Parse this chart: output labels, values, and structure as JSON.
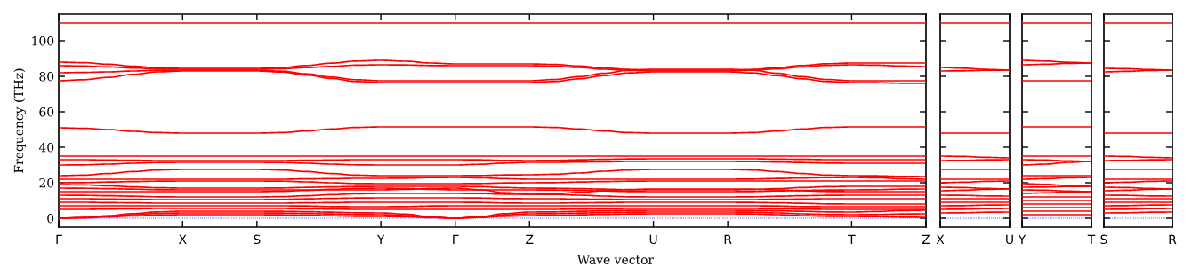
{
  "chart_data": [
    {
      "type": "line",
      "xlabel": "Wave vector",
      "ylabel": "Frequency (THz)",
      "ylim": [
        -5,
        115
      ],
      "yticks": [
        0,
        20,
        40,
        60,
        80,
        100
      ],
      "categories": [
        "Γ",
        null,
        null,
        null,
        null,
        "X",
        null,
        null,
        "S",
        null,
        null,
        null,
        null,
        "Y",
        null,
        null,
        "Γ",
        null,
        null,
        "Z",
        null,
        null,
        null,
        null,
        "U",
        null,
        null,
        "R",
        null,
        null,
        null,
        null,
        "T",
        null,
        null,
        "Z"
      ],
      "line_style": "solid",
      "grid": false,
      "ref_lines": [
        {
          "axis": "y",
          "value": 0,
          "color": "#0000ff",
          "line_style": "dotted"
        }
      ],
      "series": [
        {
          "color": "#ff0000",
          "values": [
            110,
            110,
            110,
            110,
            110,
            110,
            110,
            110,
            110,
            110,
            110,
            110,
            110,
            110,
            110,
            110,
            110,
            110,
            110,
            110,
            110,
            110,
            110,
            110,
            110,
            110,
            110,
            110,
            110,
            110,
            110,
            110,
            110,
            110,
            110,
            110
          ]
        },
        {
          "color": "#ff0000",
          "values": [
            88,
            87.7,
            86.8,
            85.7,
            84.8,
            84.5,
            84.5,
            84.5,
            84.5,
            84.9,
            86.1,
            87.4,
            88.6,
            89,
            88.5,
            87.5,
            87,
            87,
            87,
            87,
            86.7,
            85.8,
            84.7,
            83.9,
            83.5,
            83.5,
            83.5,
            83.5,
            83.9,
            84.9,
            86.1,
            87.1,
            87.5,
            87.5,
            87.5,
            87.5
          ]
        },
        {
          "color": "#ff0000",
          "values": [
            86,
            85.8,
            85.3,
            84.7,
            84.2,
            84,
            84,
            84,
            84,
            84.3,
            84.9,
            85.6,
            86.3,
            86.5,
            86.4,
            86.1,
            86,
            86,
            86,
            86,
            85.7,
            85,
            84,
            83.3,
            83,
            83,
            83,
            83,
            83.4,
            84.2,
            85.3,
            86.2,
            86.5,
            86.3,
            85.8,
            85.5
          ]
        },
        {
          "color": "#ff0000",
          "values": [
            82,
            82.2,
            82.5,
            83,
            83.4,
            83.5,
            83.5,
            83.5,
            83.5,
            82.9,
            81.4,
            79.6,
            78.1,
            77.5,
            77.5,
            77.5,
            77.5,
            77.5,
            77.5,
            77.5,
            78.2,
            79.8,
            81.7,
            83.4,
            84,
            84,
            84,
            84,
            83.4,
            81.7,
            79.8,
            78.2,
            77.5,
            77.5,
            77.5,
            77.5
          ]
        },
        {
          "color": "#ff0000",
          "values": [
            77.5,
            78.1,
            79.4,
            81.1,
            82.5,
            83,
            83,
            83,
            83,
            82.4,
            80.7,
            78.8,
            77.1,
            76.5,
            76.5,
            76.5,
            76.5,
            76.5,
            76.5,
            76.5,
            77.1,
            78.6,
            80.4,
            81.9,
            82.5,
            82.5,
            82.5,
            82.5,
            81.9,
            80.4,
            78.6,
            77.1,
            76.5,
            76.4,
            76.1,
            76
          ]
        },
        {
          "color": "#ff0000",
          "values": [
            51,
            50.7,
            50,
            49,
            48.3,
            48,
            48,
            48,
            48,
            48.3,
            49.2,
            50.3,
            51.2,
            51.5,
            51.5,
            51.5,
            51.5,
            51.5,
            51.5,
            51.5,
            51.2,
            50.3,
            49.2,
            48.3,
            48,
            48,
            48,
            48,
            48.3,
            49.2,
            50.3,
            51.2,
            51.5,
            51.5,
            51.5,
            51.5
          ]
        },
        {
          "color": "#ff0000",
          "values": [
            35,
            35,
            35,
            35,
            35,
            35,
            35,
            35,
            35,
            35,
            35,
            35,
            35,
            35,
            35,
            35,
            35,
            35,
            35,
            35,
            35,
            35,
            35,
            35,
            35,
            35,
            35,
            35,
            35,
            35,
            35,
            35,
            35,
            35,
            35,
            35
          ]
        },
        {
          "color": "#ff0000",
          "values": [
            33,
            33,
            32.8,
            32.7,
            32.5,
            32.5,
            32.5,
            32.5,
            32.5,
            32.5,
            32.7,
            32.8,
            33,
            33,
            33,
            33,
            33,
            32.9,
            32.6,
            32.5,
            32.6,
            32.9,
            33.2,
            33.4,
            33.5,
            33.5,
            33.5,
            33.5,
            33.5,
            33.3,
            33.2,
            33,
            33,
            33,
            33,
            33
          ]
        },
        {
          "color": "#ff0000",
          "values": [
            30,
            30.1,
            30.5,
            31,
            31.4,
            31.5,
            31.5,
            31.5,
            31.5,
            31.4,
            31,
            30.5,
            30.1,
            30,
            30,
            30,
            30,
            30.4,
            31.1,
            31.5,
            31.5,
            31.7,
            31.8,
            32,
            32,
            32,
            32,
            32,
            31.9,
            31.7,
            31.4,
            31.1,
            31,
            31,
            31,
            31
          ]
        },
        {
          "color": "#ff0000",
          "values": [
            24,
            24.3,
            25.2,
            26.3,
            27.2,
            27.5,
            27.5,
            27.5,
            27.5,
            27.2,
            26.3,
            25.2,
            24.3,
            24,
            24,
            24,
            24,
            24.1,
            24.4,
            24.5,
            24.8,
            25.5,
            26.5,
            27.2,
            27.5,
            27.5,
            27.5,
            27.5,
            27.2,
            26.3,
            25.2,
            24.3,
            24,
            23.9,
            23.6,
            23.5
          ]
        },
        {
          "color": "#ff0000",
          "values": [
            22,
            22,
            22,
            22,
            22,
            22,
            22,
            22,
            22,
            22,
            22.2,
            22.3,
            22.5,
            22.5,
            22.6,
            22.9,
            23,
            22.8,
            22.3,
            22,
            22,
            22,
            22,
            22,
            22,
            22,
            22,
            22,
            22.1,
            22.4,
            22.7,
            22.9,
            23,
            22.8,
            22.3,
            22
          ]
        },
        {
          "color": "#ff0000",
          "values": [
            20,
            20.1,
            20.4,
            20.7,
            20.9,
            21,
            21,
            21,
            21,
            20.9,
            20.5,
            20,
            19.6,
            19.5,
            19.5,
            19.5,
            19.5,
            19.6,
            19.9,
            20,
            20.1,
            20.4,
            20.7,
            20.9,
            21,
            21,
            21,
            21,
            21,
            21,
            21,
            21,
            21,
            21,
            21,
            21
          ]
        },
        {
          "color": "#ff0000",
          "values": [
            19,
            18.8,
            18.3,
            17.7,
            17.2,
            17,
            17,
            17,
            17,
            17.1,
            17.4,
            17.7,
            17.9,
            18,
            18,
            18,
            18,
            17.8,
            17.3,
            17,
            16.9,
            16.7,
            16.4,
            16.1,
            16,
            16,
            16,
            16,
            16.2,
            16.7,
            17.3,
            17.8,
            18,
            18,
            18,
            18
          ]
        },
        {
          "color": "#ff0000",
          "values": [
            17,
            16.9,
            16.7,
            16.4,
            16.1,
            16,
            16,
            16,
            16,
            16,
            16,
            16,
            16,
            16,
            16.3,
            16.8,
            17,
            16.1,
            14.4,
            13.5,
            13.8,
            14.6,
            15.5,
            16.2,
            16.5,
            16.5,
            16.5,
            16.5,
            16.4,
            16,
            15.5,
            15.1,
            15,
            15,
            15,
            15
          ]
        },
        {
          "color": "#ff0000",
          "values": [
            15,
            15,
            15,
            15,
            15,
            15,
            15,
            15,
            15,
            15.2,
            15.7,
            16.3,
            16.8,
            17,
            16.8,
            16.3,
            16,
            16,
            16,
            16,
            15.9,
            15.7,
            15.4,
            15.1,
            15,
            15,
            15,
            15,
            15.1,
            15.4,
            15.7,
            15.9,
            16,
            16.1,
            16.4,
            16.5
          ]
        },
        {
          "color": "#ff0000",
          "values": [
            13,
            12.9,
            12.7,
            12.4,
            12.1,
            12,
            12,
            12,
            12,
            12.2,
            12.7,
            13.3,
            13.8,
            14,
            14,
            14,
            14,
            13.9,
            13.6,
            13.5,
            13.4,
            13,
            12.5,
            12.1,
            12,
            12,
            12,
            12,
            12.1,
            12.4,
            12.7,
            12.9,
            13,
            13,
            13,
            13
          ]
        },
        {
          "color": "#ff0000",
          "values": [
            11,
            11,
            10.8,
            10.7,
            10.5,
            10.5,
            10.5,
            10.5,
            10.5,
            10.6,
            10.9,
            11.2,
            11.4,
            11.5,
            11.5,
            11.5,
            11.5,
            11.4,
            11.1,
            11,
            11,
            10.8,
            10.7,
            10.5,
            10.5,
            10.5,
            10.5,
            10.5,
            10.5,
            10.7,
            10.8,
            11,
            11,
            11,
            11,
            11
          ]
        },
        {
          "color": "#ff0000",
          "values": [
            9,
            9,
            8.8,
            8.7,
            8.5,
            8.5,
            8.5,
            8.5,
            8.5,
            8.5,
            8.7,
            8.8,
            9,
            9,
            9,
            9,
            9,
            8.9,
            8.6,
            8.5,
            8.5,
            8.7,
            8.8,
            9,
            9,
            9,
            9,
            9,
            8.9,
            8.7,
            8.4,
            8.1,
            8,
            8,
            8,
            8
          ]
        },
        {
          "color": "#ff0000",
          "values": [
            7,
            7,
            7,
            7,
            7,
            7,
            7,
            7,
            7,
            7,
            6.9,
            6.6,
            6.5,
            6.5,
            6.6,
            6.9,
            7,
            7,
            7,
            7,
            7,
            7,
            7,
            7,
            7,
            7,
            7,
            7,
            7,
            6.9,
            6.6,
            6.5,
            6.5,
            6.5,
            6.5,
            6.5
          ]
        },
        {
          "color": "#ff0000",
          "values": [
            5,
            5,
            5.2,
            5.3,
            5.5,
            5.5,
            5.5,
            5.5,
            5.5,
            5.5,
            5.3,
            5.2,
            5,
            5,
            5,
            5,
            5,
            5,
            5,
            5,
            5,
            5.2,
            5.3,
            5.5,
            5.5,
            5.5,
            5.5,
            5.5,
            5.5,
            5.3,
            5.2,
            5,
            5,
            5,
            5,
            5
          ]
        },
        {
          "color": "#ff0000",
          "values": [
            0,
            0.4,
            1.4,
            2.6,
            3.6,
            4,
            4,
            4,
            4,
            3.9,
            3.7,
            3.4,
            3.1,
            3,
            2.3,
            0.8,
            0,
            0.9,
            2.6,
            3.5,
            3.6,
            3.9,
            4.2,
            4.4,
            4.5,
            4.5,
            4.5,
            4.5,
            4.4,
            4.2,
            3.9,
            3.6,
            3.5,
            3.8,
            4.3,
            4.5
          ]
        },
        {
          "color": "#ff0000",
          "values": [
            0,
            0.3,
            1.1,
            2,
            2.7,
            3,
            3,
            3,
            3,
            2.9,
            2.7,
            2.4,
            2.1,
            2,
            1.5,
            0.5,
            0,
            0.6,
            1.9,
            2.5,
            2.6,
            2.9,
            3.2,
            3.4,
            3.5,
            3.5,
            3.5,
            3.5,
            3.4,
            3,
            2.5,
            2.1,
            2,
            2.1,
            2.4,
            2.5
          ]
        },
        {
          "color": "#ff0000",
          "values": [
            0,
            0.2,
            0.7,
            1.3,
            1.8,
            2,
            2,
            2,
            2,
            1.9,
            1.7,
            1.4,
            1.1,
            1,
            0.8,
            0.3,
            0,
            0.4,
            1.1,
            1.5,
            1.6,
            1.9,
            2.2,
            2.4,
            2.5,
            2.5,
            2.5,
            2.5,
            2.4,
            2,
            1.5,
            1.1,
            1,
            0.9,
            0.6,
            0.5
          ]
        }
      ]
    },
    {
      "type": "line",
      "ylim": [
        -5,
        115
      ],
      "yticks": [
        0,
        20,
        40,
        60,
        80,
        100
      ],
      "tick_labels": "x",
      "categories": [
        "X",
        null,
        null,
        "U"
      ],
      "line_style": "solid",
      "grid": false,
      "ref_lines": [
        {
          "axis": "y",
          "value": 0,
          "color": "#0000ff",
          "line_style": "dotted"
        }
      ],
      "series": [
        {
          "color": "#ff0000",
          "values": [
            110,
            110,
            110,
            110
          ]
        },
        {
          "color": "#ff0000",
          "values": [
            85,
            84.6,
            83.9,
            83.5
          ]
        },
        {
          "color": "#ff0000",
          "values": [
            83,
            83.1,
            83.4,
            83.5
          ]
        },
        {
          "color": "#ff0000",
          "values": [
            48,
            48,
            48,
            48
          ]
        },
        {
          "color": "#ff0000",
          "values": [
            35,
            34.8,
            34.3,
            34
          ]
        },
        {
          "color": "#ff0000",
          "values": [
            32.5,
            32.6,
            32.9,
            33
          ]
        },
        {
          "color": "#ff0000",
          "values": [
            27.5,
            27.5,
            27.5,
            27.5
          ]
        },
        {
          "color": "#ff0000",
          "values": [
            22,
            22,
            22,
            22
          ]
        },
        {
          "color": "#ff0000",
          "values": [
            20,
            20.3,
            20.8,
            21
          ]
        },
        {
          "color": "#ff0000",
          "values": [
            17.5,
            17.3,
            16.8,
            16.5
          ]
        },
        {
          "color": "#ff0000",
          "values": [
            15.5,
            15.8,
            16.3,
            16.5
          ]
        },
        {
          "color": "#ff0000",
          "values": [
            13,
            12.9,
            12.6,
            12.5
          ]
        },
        {
          "color": "#ff0000",
          "values": [
            11,
            11,
            11,
            11
          ]
        },
        {
          "color": "#ff0000",
          "values": [
            9,
            9,
            9,
            9
          ]
        },
        {
          "color": "#ff0000",
          "values": [
            7,
            7.1,
            7.4,
            7.5
          ]
        },
        {
          "color": "#ff0000",
          "values": [
            5,
            5.1,
            5.4,
            5.5
          ]
        },
        {
          "color": "#ff0000",
          "values": [
            3,
            3.1,
            3.4,
            3.5
          ]
        }
      ]
    },
    {
      "type": "line",
      "ylim": [
        -5,
        115
      ],
      "yticks": [
        0,
        20,
        40,
        60,
        80,
        100
      ],
      "tick_labels": "x",
      "categories": [
        "Y",
        null,
        null,
        "T"
      ],
      "line_style": "solid",
      "grid": false,
      "ref_lines": [
        {
          "axis": "y",
          "value": 0,
          "color": "#0000ff",
          "line_style": "dotted"
        }
      ],
      "series": [
        {
          "color": "#ff0000",
          "values": [
            110,
            110,
            110,
            110
          ]
        },
        {
          "color": "#ff0000",
          "values": [
            89,
            88.6,
            87.9,
            87.5
          ]
        },
        {
          "color": "#ff0000",
          "values": [
            86.5,
            86.8,
            87.3,
            87.5
          ]
        },
        {
          "color": "#ff0000",
          "values": [
            77.5,
            77.5,
            77.5,
            77.5
          ]
        },
        {
          "color": "#ff0000",
          "values": [
            51.5,
            51.5,
            51.5,
            51.5
          ]
        },
        {
          "color": "#ff0000",
          "values": [
            35,
            35,
            35,
            35
          ]
        },
        {
          "color": "#ff0000",
          "values": [
            33,
            32.8,
            32.3,
            32
          ]
        },
        {
          "color": "#ff0000",
          "values": [
            30,
            30.5,
            31.5,
            32
          ]
        },
        {
          "color": "#ff0000",
          "values": [
            24,
            24,
            24,
            24
          ]
        },
        {
          "color": "#ff0000",
          "values": [
            22,
            22.3,
            22.8,
            23
          ]
        },
        {
          "color": "#ff0000",
          "values": [
            19.5,
            19.1,
            18.4,
            18
          ]
        },
        {
          "color": "#ff0000",
          "values": [
            17.5,
            17.6,
            17.9,
            18
          ]
        },
        {
          "color": "#ff0000",
          "values": [
            16,
            15.8,
            15.3,
            15
          ]
        },
        {
          "color": "#ff0000",
          "values": [
            14,
            14.3,
            14.8,
            15
          ]
        },
        {
          "color": "#ff0000",
          "values": [
            12,
            12,
            12,
            12
          ]
        },
        {
          "color": "#ff0000",
          "values": [
            10,
            10,
            10,
            10
          ]
        },
        {
          "color": "#ff0000",
          "values": [
            8,
            8,
            8,
            8
          ]
        },
        {
          "color": "#ff0000",
          "values": [
            6,
            6,
            6,
            6
          ]
        },
        {
          "color": "#ff0000",
          "values": [
            4,
            4,
            4,
            4
          ]
        },
        {
          "color": "#ff0000",
          "values": [
            2,
            2,
            2,
            2
          ]
        }
      ]
    },
    {
      "type": "line",
      "ylim": [
        -5,
        115
      ],
      "yticks": [
        0,
        20,
        40,
        60,
        80,
        100
      ],
      "tick_labels": "x",
      "categories": [
        "S",
        null,
        null,
        "R"
      ],
      "line_style": "solid",
      "grid": false,
      "ref_lines": [
        {
          "axis": "y",
          "value": 0,
          "color": "#0000ff",
          "line_style": "dotted"
        }
      ],
      "series": [
        {
          "color": "#ff0000",
          "values": [
            110,
            110,
            110,
            110
          ]
        },
        {
          "color": "#ff0000",
          "values": [
            84.5,
            84.3,
            83.8,
            83.5
          ]
        },
        {
          "color": "#ff0000",
          "values": [
            82.5,
            82.8,
            83.3,
            83.5
          ]
        },
        {
          "color": "#ff0000",
          "values": [
            48,
            48,
            48,
            48
          ]
        },
        {
          "color": "#ff0000",
          "values": [
            35,
            34.8,
            34.3,
            34
          ]
        },
        {
          "color": "#ff0000",
          "values": [
            32.5,
            32.6,
            32.9,
            33
          ]
        },
        {
          "color": "#ff0000",
          "values": [
            27.5,
            27.5,
            27.5,
            27.5
          ]
        },
        {
          "color": "#ff0000",
          "values": [
            22,
            22,
            22,
            22
          ]
        },
        {
          "color": "#ff0000",
          "values": [
            20,
            20.3,
            20.8,
            21
          ]
        },
        {
          "color": "#ff0000",
          "values": [
            17.5,
            17.3,
            16.8,
            16.5
          ]
        },
        {
          "color": "#ff0000",
          "values": [
            15.5,
            15.8,
            16.3,
            16.5
          ]
        },
        {
          "color": "#ff0000",
          "values": [
            13,
            12.9,
            12.6,
            12.5
          ]
        },
        {
          "color": "#ff0000",
          "values": [
            11,
            11,
            11,
            11
          ]
        },
        {
          "color": "#ff0000",
          "values": [
            9,
            9,
            9,
            9
          ]
        },
        {
          "color": "#ff0000",
          "values": [
            7,
            7.1,
            7.4,
            7.5
          ]
        },
        {
          "color": "#ff0000",
          "values": [
            5,
            5.1,
            5.4,
            5.5
          ]
        },
        {
          "color": "#ff0000",
          "values": [
            3,
            3.1,
            3.4,
            3.5
          ]
        }
      ]
    }
  ]
}
